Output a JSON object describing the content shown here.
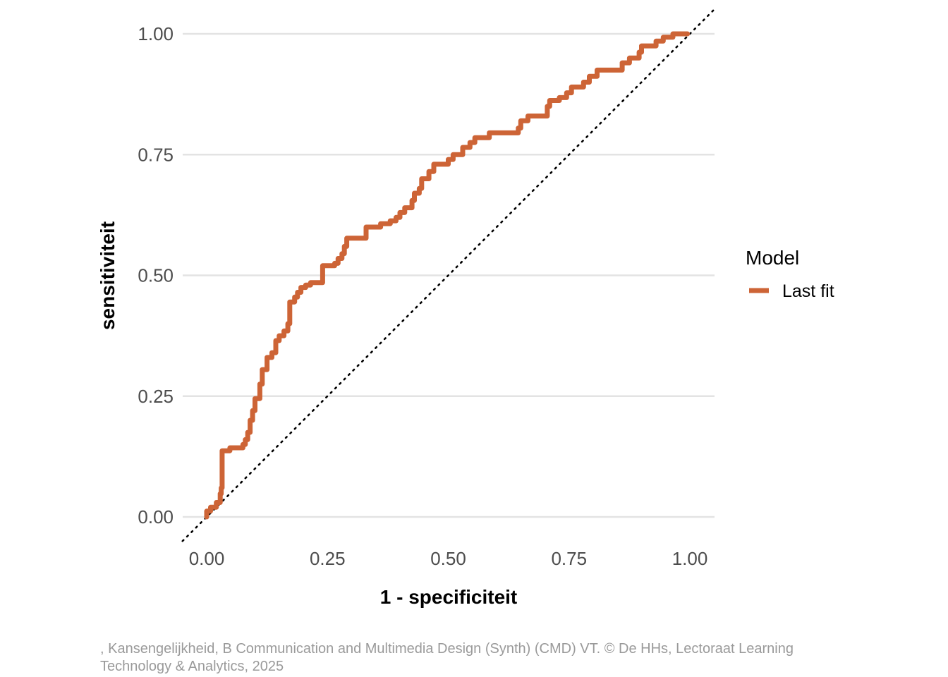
{
  "chart_data": {
    "type": "line",
    "xlabel": "1 - specificiteit",
    "ylabel": "sensitiviteit",
    "xlim": [
      -0.05,
      1.05
    ],
    "ylim": [
      -0.05,
      1.05
    ],
    "x_ticks": [
      "0.00",
      "0.25",
      "0.50",
      "0.75",
      "1.00"
    ],
    "y_ticks": [
      "0.00",
      "0.25",
      "0.50",
      "0.75",
      "1.00"
    ],
    "x_tick_values": [
      0,
      0.25,
      0.5,
      0.75,
      1.0
    ],
    "y_tick_values": [
      0,
      0.25,
      0.5,
      0.75,
      1.0
    ],
    "grid": "horizontal",
    "reference_line": "diagonal dotted",
    "legend": {
      "title": "Model",
      "position": "right",
      "entries": [
        "Last fit"
      ]
    },
    "series": [
      {
        "name": "Last fit",
        "color": "#cd6436",
        "x": [
          0.0,
          0.0,
          0.008,
          0.008,
          0.02,
          0.02,
          0.028,
          0.028,
          0.03,
          0.03,
          0.032,
          0.032,
          0.048,
          0.048,
          0.075,
          0.075,
          0.08,
          0.08,
          0.085,
          0.085,
          0.09,
          0.09,
          0.095,
          0.095,
          0.1,
          0.1,
          0.11,
          0.11,
          0.115,
          0.115,
          0.125,
          0.125,
          0.135,
          0.135,
          0.143,
          0.143,
          0.15,
          0.15,
          0.16,
          0.16,
          0.168,
          0.168,
          0.172,
          0.172,
          0.182,
          0.182,
          0.188,
          0.188,
          0.195,
          0.195,
          0.205,
          0.205,
          0.215,
          0.215,
          0.24,
          0.24,
          0.265,
          0.265,
          0.272,
          0.272,
          0.28,
          0.28,
          0.285,
          0.285,
          0.29,
          0.29,
          0.33,
          0.33,
          0.36,
          0.36,
          0.38,
          0.38,
          0.392,
          0.392,
          0.4,
          0.4,
          0.41,
          0.41,
          0.425,
          0.425,
          0.43,
          0.43,
          0.44,
          0.44,
          0.445,
          0.445,
          0.46,
          0.46,
          0.47,
          0.47,
          0.5,
          0.5,
          0.51,
          0.51,
          0.53,
          0.53,
          0.545,
          0.545,
          0.555,
          0.555,
          0.585,
          0.585,
          0.645,
          0.645,
          0.65,
          0.65,
          0.665,
          0.665,
          0.705,
          0.705,
          0.71,
          0.71,
          0.73,
          0.73,
          0.745,
          0.745,
          0.755,
          0.755,
          0.78,
          0.78,
          0.792,
          0.792,
          0.808,
          0.808,
          0.86,
          0.86,
          0.875,
          0.875,
          0.895,
          0.895,
          0.9,
          0.9,
          0.93,
          0.93,
          0.945,
          0.945,
          0.965,
          0.965,
          0.995
        ],
        "y": [
          0.0,
          0.012,
          0.012,
          0.02,
          0.02,
          0.03,
          0.03,
          0.048,
          0.048,
          0.06,
          0.06,
          0.137,
          0.137,
          0.143,
          0.143,
          0.15,
          0.15,
          0.16,
          0.16,
          0.175,
          0.175,
          0.2,
          0.2,
          0.22,
          0.22,
          0.245,
          0.245,
          0.275,
          0.275,
          0.305,
          0.305,
          0.33,
          0.33,
          0.34,
          0.34,
          0.365,
          0.365,
          0.375,
          0.375,
          0.385,
          0.385,
          0.4,
          0.4,
          0.445,
          0.445,
          0.455,
          0.455,
          0.465,
          0.465,
          0.475,
          0.475,
          0.48,
          0.48,
          0.485,
          0.485,
          0.52,
          0.52,
          0.525,
          0.525,
          0.535,
          0.535,
          0.545,
          0.545,
          0.56,
          0.56,
          0.577,
          0.577,
          0.6,
          0.6,
          0.607,
          0.607,
          0.613,
          0.613,
          0.62,
          0.62,
          0.63,
          0.63,
          0.64,
          0.64,
          0.655,
          0.655,
          0.67,
          0.67,
          0.68,
          0.68,
          0.7,
          0.7,
          0.715,
          0.715,
          0.73,
          0.73,
          0.74,
          0.74,
          0.75,
          0.75,
          0.765,
          0.765,
          0.775,
          0.775,
          0.785,
          0.785,
          0.795,
          0.795,
          0.805,
          0.805,
          0.82,
          0.82,
          0.83,
          0.83,
          0.85,
          0.85,
          0.862,
          0.862,
          0.868,
          0.868,
          0.878,
          0.878,
          0.89,
          0.89,
          0.9,
          0.9,
          0.912,
          0.912,
          0.925,
          0.925,
          0.94,
          0.94,
          0.95,
          0.95,
          0.962,
          0.962,
          0.975,
          0.975,
          0.985,
          0.985,
          0.993,
          0.993,
          1.0,
          1.0
        ]
      }
    ]
  },
  "caption": ", Kansengelijkheid, B Communication and Multimedia Design (Synth) (CMD) VT. © De HHs, Lectoraat Learning Technology & Analytics, 2025"
}
